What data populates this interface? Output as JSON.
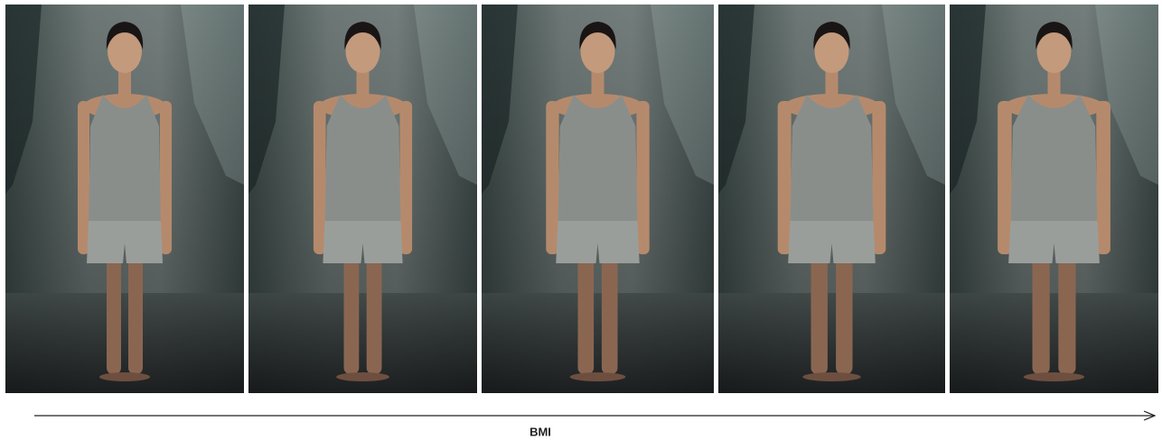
{
  "axis_label": "BMI"
}
